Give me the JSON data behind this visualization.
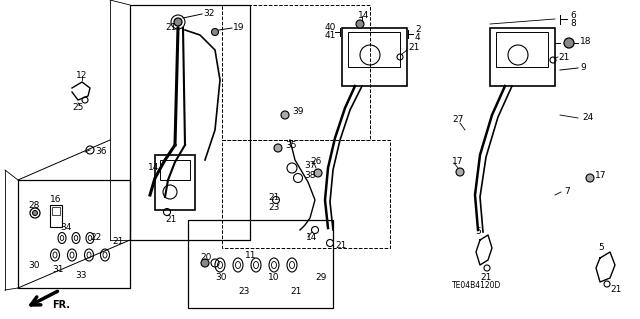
{
  "bg_color": "#ffffff",
  "diagram_code": "TE04B4120D",
  "figsize": [
    6.4,
    3.19
  ],
  "dpi": 100
}
